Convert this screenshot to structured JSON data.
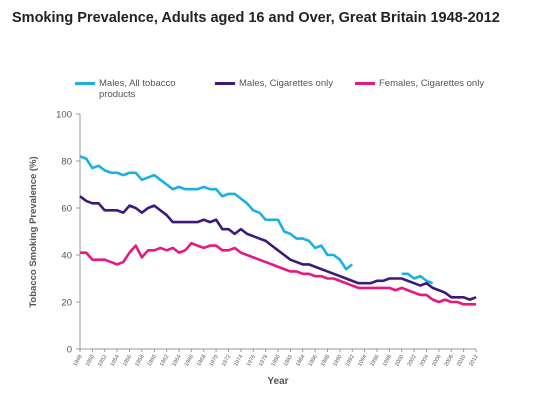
{
  "chart_data": {
    "type": "line",
    "title": "Smoking Prevalence, Adults aged 16 and Over, Great Britain 1948-2012",
    "x_label": "Year",
    "y_label": "Tobacco Smoking Prevalence (%)",
    "legend": "top",
    "grid": false,
    "x": [
      1948,
      1949,
      1950,
      1951,
      1952,
      1953,
      1954,
      1955,
      1956,
      1957,
      1958,
      1959,
      1960,
      1961,
      1962,
      1963,
      1964,
      1965,
      1966,
      1967,
      1968,
      1969,
      1970,
      1971,
      1972,
      1973,
      1974,
      1975,
      1976,
      1977,
      1978,
      1979,
      1980,
      1981,
      1982,
      1983,
      1984,
      1985,
      1986,
      1987,
      1988,
      1989,
      1990,
      1991,
      1992,
      1993,
      1994,
      1995,
      1996,
      1997,
      1998,
      1999,
      2000,
      2001,
      2002,
      2003,
      2004,
      2005,
      2006,
      2007,
      2008,
      2009,
      2010,
      2011,
      2012
    ],
    "xlim": [
      1948,
      2012
    ],
    "xticks": [
      1948,
      1950,
      1952,
      1954,
      1956,
      1958,
      1960,
      1962,
      1964,
      1966,
      1968,
      1970,
      1972,
      1974,
      1976,
      1978,
      1980,
      1982,
      1984,
      1986,
      1988,
      1990,
      1992,
      1994,
      1996,
      1998,
      2000,
      2002,
      2004,
      2006,
      2008,
      2010,
      2012
    ],
    "ylim": [
      0,
      100
    ],
    "yticks": [
      0,
      20,
      40,
      60,
      80,
      100
    ],
    "series": [
      {
        "name": "Males, All tobacco products",
        "color": "#1ab0e6",
        "values": [
          82,
          81,
          77,
          78,
          76,
          75,
          75,
          74,
          75,
          75,
          72,
          73,
          74,
          72,
          70,
          68,
          69,
          68,
          68,
          68,
          69,
          68,
          68,
          65,
          66,
          66,
          64,
          62,
          59,
          58,
          55,
          55,
          55,
          50,
          49,
          47,
          47,
          46,
          43,
          44,
          40,
          40,
          38,
          34,
          36,
          null,
          null,
          null,
          null,
          null,
          null,
          null,
          32,
          32,
          30,
          31,
          29,
          28,
          null,
          null,
          null,
          null,
          null,
          null,
          null
        ]
      },
      {
        "name": "Males, Cigarettes only",
        "color": "#3d1a7a",
        "values": [
          65,
          63,
          62,
          62,
          59,
          59,
          59,
          58,
          61,
          60,
          58,
          60,
          61,
          59,
          57,
          54,
          54,
          54,
          54,
          54,
          55,
          54,
          55,
          51,
          51,
          49,
          51,
          49,
          48,
          47,
          46,
          44,
          42,
          40,
          38,
          37,
          36,
          36,
          35,
          34,
          33,
          32,
          31,
          30,
          29,
          28,
          28,
          28,
          29,
          29,
          30,
          30,
          30,
          29,
          28,
          27,
          28,
          26,
          25,
          24,
          22,
          22,
          22,
          21,
          22
        ]
      },
      {
        "name": "Females, Cigarettes only",
        "color": "#e6197f",
        "values": [
          41,
          41,
          38,
          38,
          38,
          37,
          36,
          37,
          41,
          44,
          39,
          42,
          42,
          43,
          42,
          43,
          41,
          42,
          45,
          44,
          43,
          44,
          44,
          42,
          42,
          43,
          41,
          40,
          39,
          38,
          37,
          36,
          35,
          34,
          33,
          33,
          32,
          32,
          31,
          31,
          30,
          30,
          29,
          28,
          27,
          26,
          26,
          26,
          26,
          26,
          26,
          25,
          26,
          25,
          24,
          23,
          23,
          21,
          20,
          21,
          20,
          20,
          19,
          19,
          19
        ]
      }
    ]
  }
}
